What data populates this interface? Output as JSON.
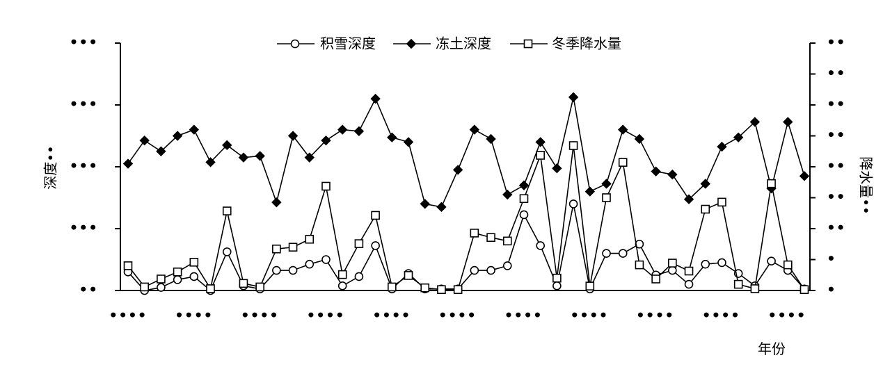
{
  "chart_data": {
    "type": "line",
    "xlabel": "年份",
    "ylabel_left": "深度••",
    "ylabel_right": "降水量••",
    "x_tick_labels": [
      "••••",
      "••••",
      "••••",
      "••••",
      "••••",
      "••••",
      "••••",
      "••••",
      "••••",
      "••••",
      "••••"
    ],
    "y_left_tick_labels": [
      "•••",
      "•••",
      "•••",
      "•••",
      "••"
    ],
    "y_right_tick_labels": [
      "••",
      "••",
      "••",
      "••",
      "••",
      "••",
      "••",
      "•",
      "•"
    ],
    "y_left_range": [
      0,
      160
    ],
    "y_right_range": [
      0,
      280
    ],
    "x_count": 42,
    "grid": false,
    "legend_position": "top-center",
    "series": [
      {
        "name": "积雪深度",
        "marker": "circle-open",
        "axis": "left",
        "values": [
          12,
          0,
          2,
          7,
          9,
          0,
          25,
          3,
          1,
          13,
          13,
          17,
          20,
          3,
          9,
          29,
          1,
          11,
          1,
          1,
          1,
          13,
          13,
          16,
          49,
          29,
          3,
          56,
          1,
          24,
          24,
          30,
          10,
          13,
          4,
          17,
          18,
          11,
          3,
          19,
          13,
          1
        ]
      },
      {
        "name": "冻土深度",
        "marker": "diamond-filled",
        "axis": "left",
        "values": [
          82,
          97,
          90,
          100,
          104,
          83,
          94,
          86,
          87,
          57,
          100,
          86,
          97,
          104,
          103,
          124,
          99,
          96,
          56,
          54,
          78,
          104,
          98,
          62,
          68,
          96,
          79,
          125,
          64,
          69,
          104,
          98,
          77,
          75,
          59,
          69,
          93,
          99,
          109,
          66,
          109,
          74
        ]
      },
      {
        "name": "冬季降水量",
        "marker": "square-open",
        "axis": "right",
        "values": [
          28,
          4,
          13,
          21,
          32,
          2,
          90,
          8,
          4,
          47,
          49,
          58,
          118,
          18,
          53,
          85,
          4,
          17,
          3,
          1,
          1,
          65,
          60,
          56,
          104,
          153,
          14,
          164,
          5,
          105,
          145,
          29,
          13,
          31,
          22,
          92,
          100,
          7,
          2,
          121,
          29,
          1
        ]
      }
    ]
  }
}
